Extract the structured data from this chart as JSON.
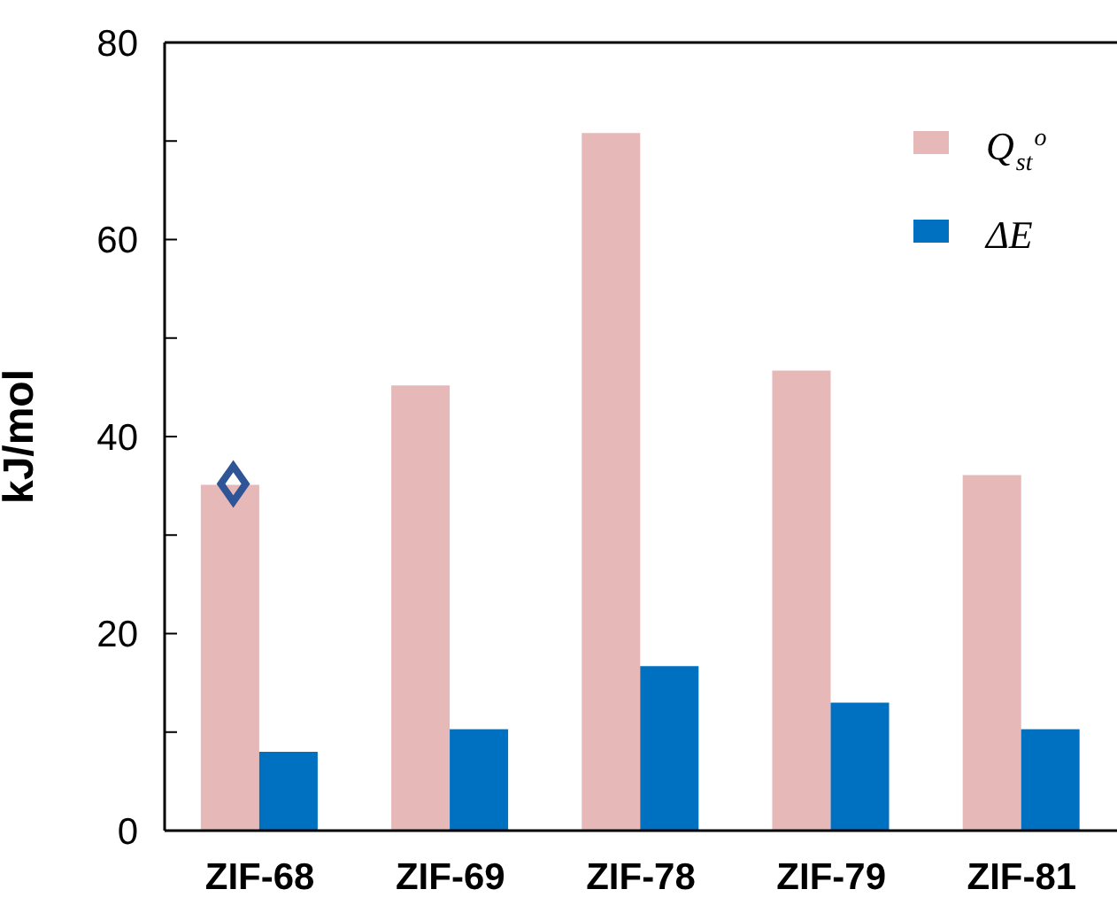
{
  "chart_data": {
    "type": "bar",
    "ylabel": "kJ/mol",
    "categories": [
      "ZIF-68",
      "ZIF-69",
      "ZIF-78",
      "ZIF-79",
      "ZIF-81"
    ],
    "series": [
      {
        "name": "Q$_{st}$$^{o}$",
        "color": "#e6b8b7",
        "values": [
          35.1,
          45.2,
          70.8,
          46.7,
          36.1
        ]
      },
      {
        "name": "ΔE",
        "color": "#0070c0",
        "values": [
          8.0,
          10.3,
          16.7,
          13.0,
          10.3
        ]
      },
      {
        "type": "scatter",
        "color": "#2f5597",
        "x": [
          "ZIF-68"
        ],
        "values": [
          35.2
        ],
        "marker": "diamond"
      }
    ],
    "ylim": [
      0,
      80
    ],
    "yticks": [
      0,
      {
        "value": 10,
        "label": null
      },
      20,
      {
        "value": 30,
        "label": null
      },
      40,
      {
        "value": 50,
        "label": null
      },
      60,
      {
        "value": 70,
        "label": null
      },
      80
    ],
    "grid": false,
    "legend": "top right"
  }
}
